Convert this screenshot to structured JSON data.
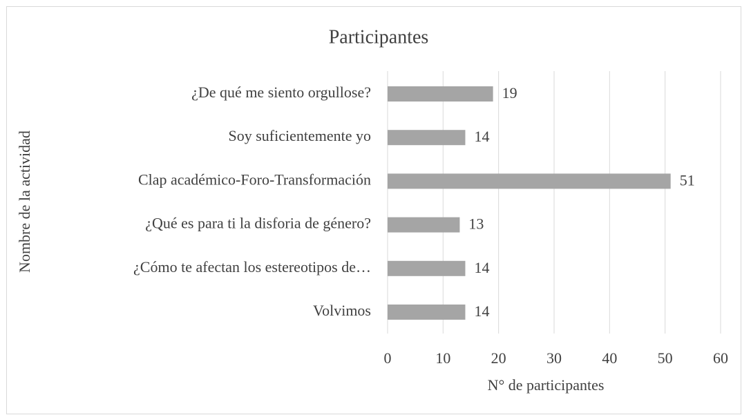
{
  "chart_data": {
    "type": "bar",
    "orientation": "horizontal",
    "title": "Participantes",
    "x_label": "N° de participantes",
    "y_label": "Nombre de la actividad",
    "categories": [
      "¿De qué me siento orgullose?",
      "Soy suficientemente yo",
      "Clap académico-Foro-Transformación",
      "¿Qué es para ti la disforia de género?",
      "¿Cómo te afectan los estereotipos de…",
      "Volvimos"
    ],
    "values": [
      19,
      14,
      51,
      13,
      14,
      14
    ],
    "color": "#a5a5a5",
    "xlim": [
      0,
      60
    ],
    "xticks": [
      0,
      10,
      20,
      30,
      40,
      50,
      60
    ],
    "grid": true
  }
}
